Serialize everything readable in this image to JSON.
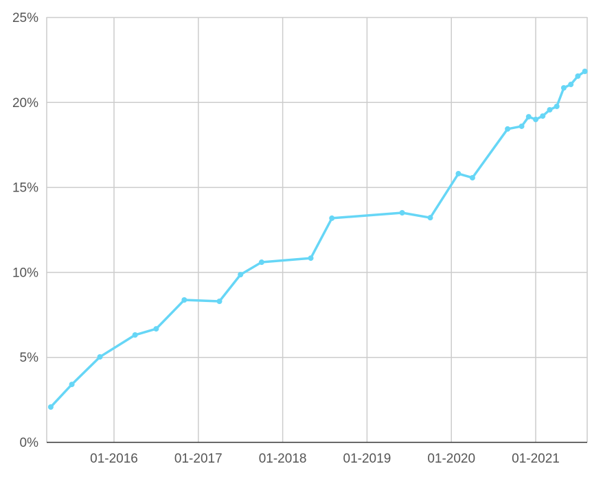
{
  "chart_data": {
    "type": "line",
    "title": "",
    "xlabel": "",
    "ylabel": "",
    "x_axis": "date",
    "ylim": [
      0,
      25
    ],
    "xlim": [
      "2015-03",
      "2021-09"
    ],
    "grid": true,
    "legend": "none",
    "colors": {
      "series": "#66d6f6",
      "grid": "#cccccc",
      "axis": "#333333"
    },
    "y_ticks": [
      0,
      5,
      10,
      15,
      20,
      25
    ],
    "y_tick_labels": [
      "0%",
      "5%",
      "10%",
      "15%",
      "20%",
      "25%"
    ],
    "x_ticks": [
      "2016-01",
      "2017-01",
      "2018-01",
      "2019-01",
      "2020-01",
      "2021-01"
    ],
    "x_tick_labels": [
      "01-2016",
      "01-2017",
      "01-2018",
      "01-2019",
      "01-2020",
      "01-2021"
    ],
    "series": [
      {
        "x": [
          "2015-04",
          "2015-07",
          "2015-11",
          "2016-04",
          "2016-07",
          "2016-11",
          "2017-04",
          "2017-07",
          "2017-10",
          "2018-05",
          "2018-08",
          "2019-06",
          "2019-10",
          "2020-02",
          "2020-04",
          "2020-09",
          "2020-11",
          "2020-12",
          "2021-01",
          "2021-02",
          "2021-03",
          "2021-04",
          "2021-05",
          "2021-06",
          "2021-07",
          "2021-08"
        ],
        "values": [
          2.06,
          3.39,
          5.01,
          6.3,
          6.66,
          8.36,
          8.28,
          9.85,
          10.58,
          10.82,
          13.17,
          13.49,
          13.2,
          15.79,
          15.55,
          18.42,
          18.58,
          19.14,
          18.98,
          19.18,
          19.55,
          19.75,
          20.84,
          21.04,
          21.53,
          21.81
        ]
      }
    ]
  }
}
